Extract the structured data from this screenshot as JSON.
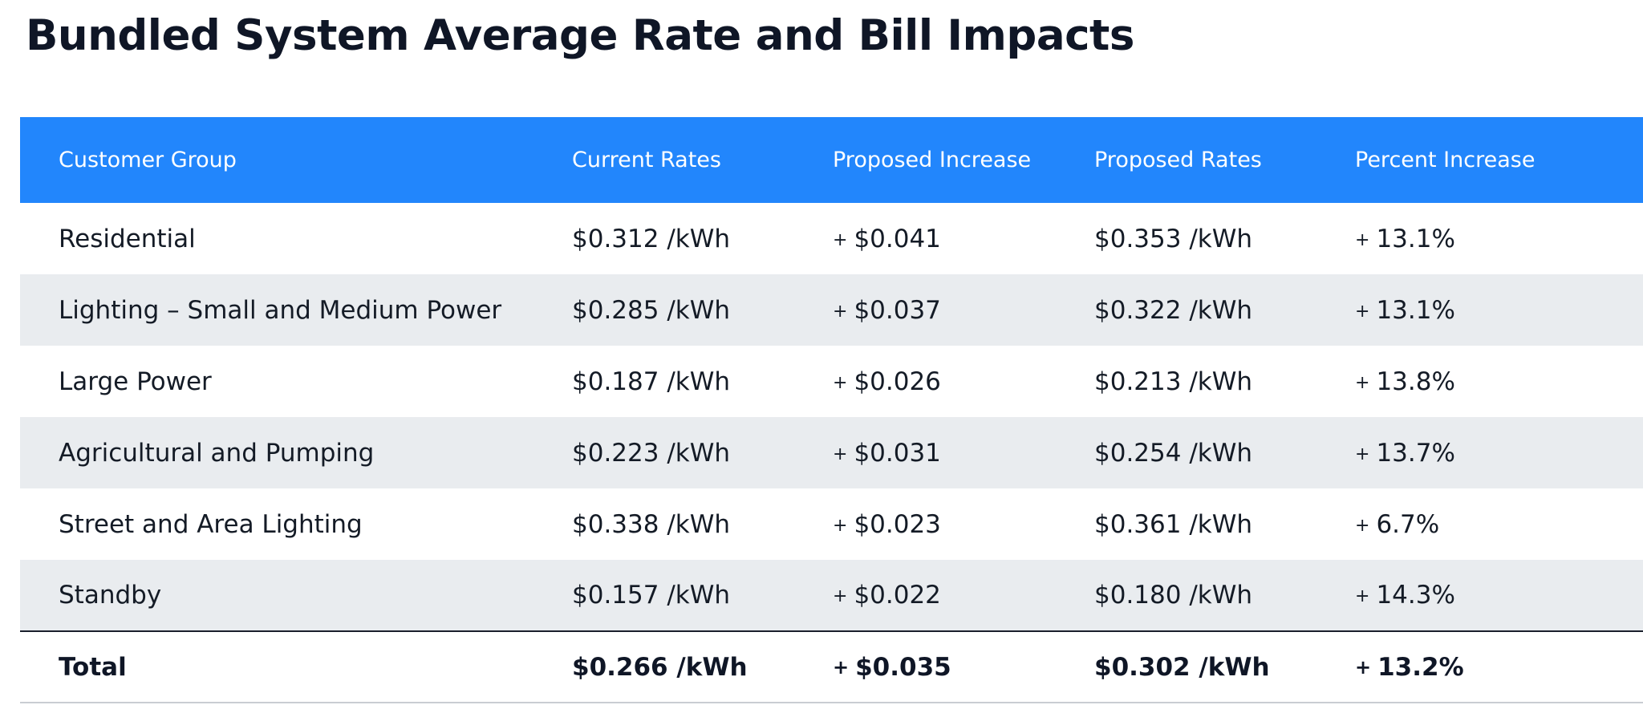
{
  "title": "Bundled System Average Rate and Bill Impacts",
  "colors": {
    "header_background": "#2286fc",
    "header_text": "#ffffff",
    "shaded_row": "#e9ecef",
    "body_text": "#141b26"
  },
  "table": {
    "headers": [
      "Customer Group",
      "Current Rates",
      "Proposed Increase",
      "Proposed Rates",
      "Percent Increase"
    ],
    "rows": [
      {
        "group": "Residential",
        "current": "$0.312 /kWh",
        "increase_sign": "+",
        "increase": "$0.041",
        "proposed": "$0.353 /kWh",
        "percent_sign": "+",
        "percent": "13.1%"
      },
      {
        "group": "Lighting – Small and Medium Power",
        "current": "$0.285 /kWh",
        "increase_sign": "+",
        "increase": "$0.037",
        "proposed": "$0.322 /kWh",
        "percent_sign": "+",
        "percent": "13.1%"
      },
      {
        "group": "Large Power",
        "current": "$0.187 /kWh",
        "increase_sign": "+",
        "increase": "$0.026",
        "proposed": "$0.213 /kWh",
        "percent_sign": "+",
        "percent": "13.8%"
      },
      {
        "group": "Agricultural and Pumping",
        "current": "$0.223 /kWh",
        "increase_sign": "+",
        "increase": "$0.031",
        "proposed": "$0.254 /kWh",
        "percent_sign": "+",
        "percent": "13.7%"
      },
      {
        "group": "Street and Area Lighting",
        "current": "$0.338 /kWh",
        "increase_sign": "+",
        "increase": "$0.023",
        "proposed": "$0.361 /kWh",
        "percent_sign": "+",
        "percent": "6.7%"
      },
      {
        "group": "Standby",
        "current": "$0.157 /kWh",
        "increase_sign": "+",
        "increase": "$0.022",
        "proposed": "$0.180 /kWh",
        "percent_sign": "+",
        "percent": "14.3%"
      }
    ],
    "total": {
      "group": "Total",
      "current": "$0.266 /kWh",
      "increase_sign": "+",
      "increase": "$0.035",
      "proposed": "$0.302 /kWh",
      "percent_sign": "+",
      "percent": "13.2%"
    }
  }
}
